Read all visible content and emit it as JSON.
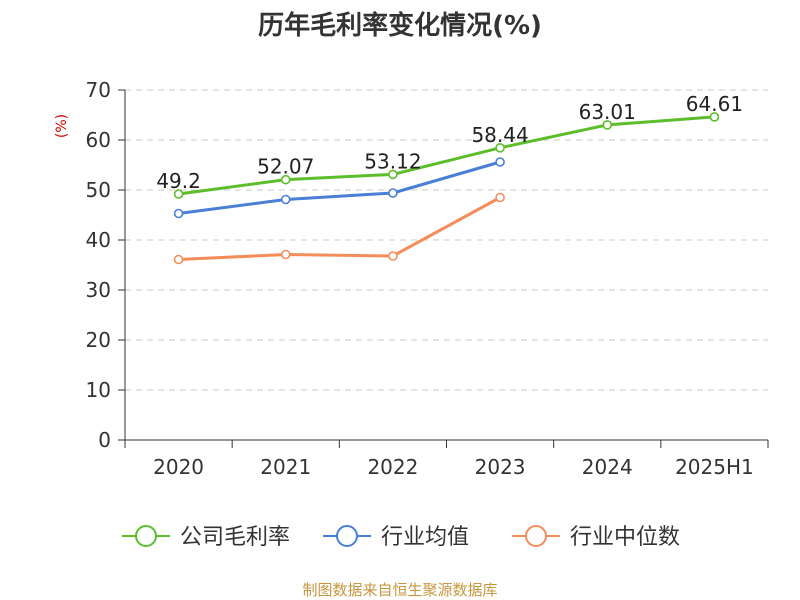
{
  "chart_data": {
    "type": "line",
    "title": "历年毛利率变化情况(%)",
    "ylabel": "(%)",
    "categories": [
      "2020",
      "2021",
      "2022",
      "2023",
      "2024",
      "2025H1"
    ],
    "ylim": [
      0,
      70
    ],
    "yticks": [
      "0",
      "10",
      "20",
      "30",
      "40",
      "50",
      "60",
      "70"
    ],
    "grid": true,
    "legend_position": "bottom",
    "series": [
      {
        "name": "公司毛利率",
        "color": "#5dbe2b",
        "values": [
          49.2,
          52.07,
          53.12,
          58.44,
          63.01,
          64.61
        ],
        "labels": [
          "49.2",
          "52.07",
          "53.12",
          "58.44",
          "63.01",
          "64.61"
        ]
      },
      {
        "name": "行业均值",
        "color": "#4a7fd8",
        "values": [
          45.3,
          48.1,
          49.4,
          55.6,
          null,
          null
        ]
      },
      {
        "name": "行业中位数",
        "color": "#f58d5b",
        "values": [
          36.1,
          37.1,
          36.8,
          48.5,
          null,
          null
        ]
      }
    ],
    "source": "制图数据来自恒生聚源数据库",
    "source_color": "#c8963e",
    "unit_color": "#cc0000"
  }
}
